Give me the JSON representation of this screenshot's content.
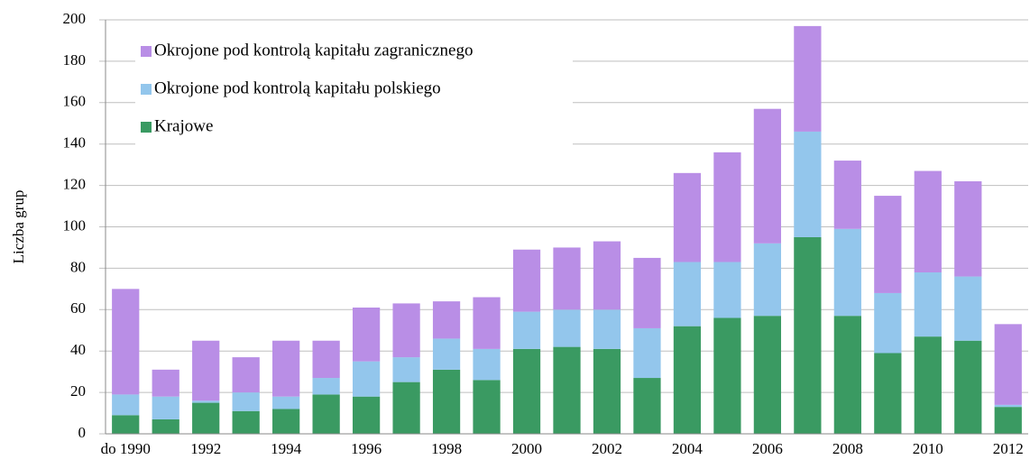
{
  "chart_data": {
    "type": "stacked_bar",
    "y_label": "Liczba grup",
    "categories": [
      "do 1990",
      null,
      "1992",
      null,
      "1994",
      null,
      "1996",
      null,
      "1998",
      null,
      "2000",
      null,
      "2002",
      null,
      "2004",
      null,
      "2006",
      null,
      "2008",
      null,
      "2010",
      null,
      "2012"
    ],
    "series": [
      {
        "name": "Krajowe",
        "color": "#3a9a62",
        "values": [
          9,
          7,
          15,
          11,
          12,
          19,
          18,
          25,
          31,
          26,
          41,
          42,
          41,
          27,
          52,
          56,
          57,
          95,
          57,
          39,
          47,
          45,
          13
        ]
      },
      {
        "name": "Okrojone pod kontrolą kapitału polskiego",
        "color": "#93c6ec",
        "values": [
          10,
          11,
          1,
          9,
          6,
          8,
          17,
          12,
          15,
          15,
          18,
          18,
          19,
          24,
          31,
          27,
          35,
          51,
          42,
          29,
          31,
          31,
          1
        ]
      },
      {
        "name": "Okrojone pod kontrolą kapitału zagranicznego",
        "color": "#b98ee6",
        "values": [
          51,
          13,
          29,
          17,
          27,
          18,
          26,
          26,
          18,
          25,
          30,
          30,
          33,
          34,
          43,
          53,
          65,
          51,
          33,
          47,
          49,
          46,
          39
        ]
      }
    ],
    "ylim": [
      0,
      200
    ],
    "yticks": [
      0,
      20,
      40,
      60,
      80,
      100,
      120,
      140,
      160,
      180,
      200
    ],
    "grid": true,
    "legend": "top-left"
  }
}
